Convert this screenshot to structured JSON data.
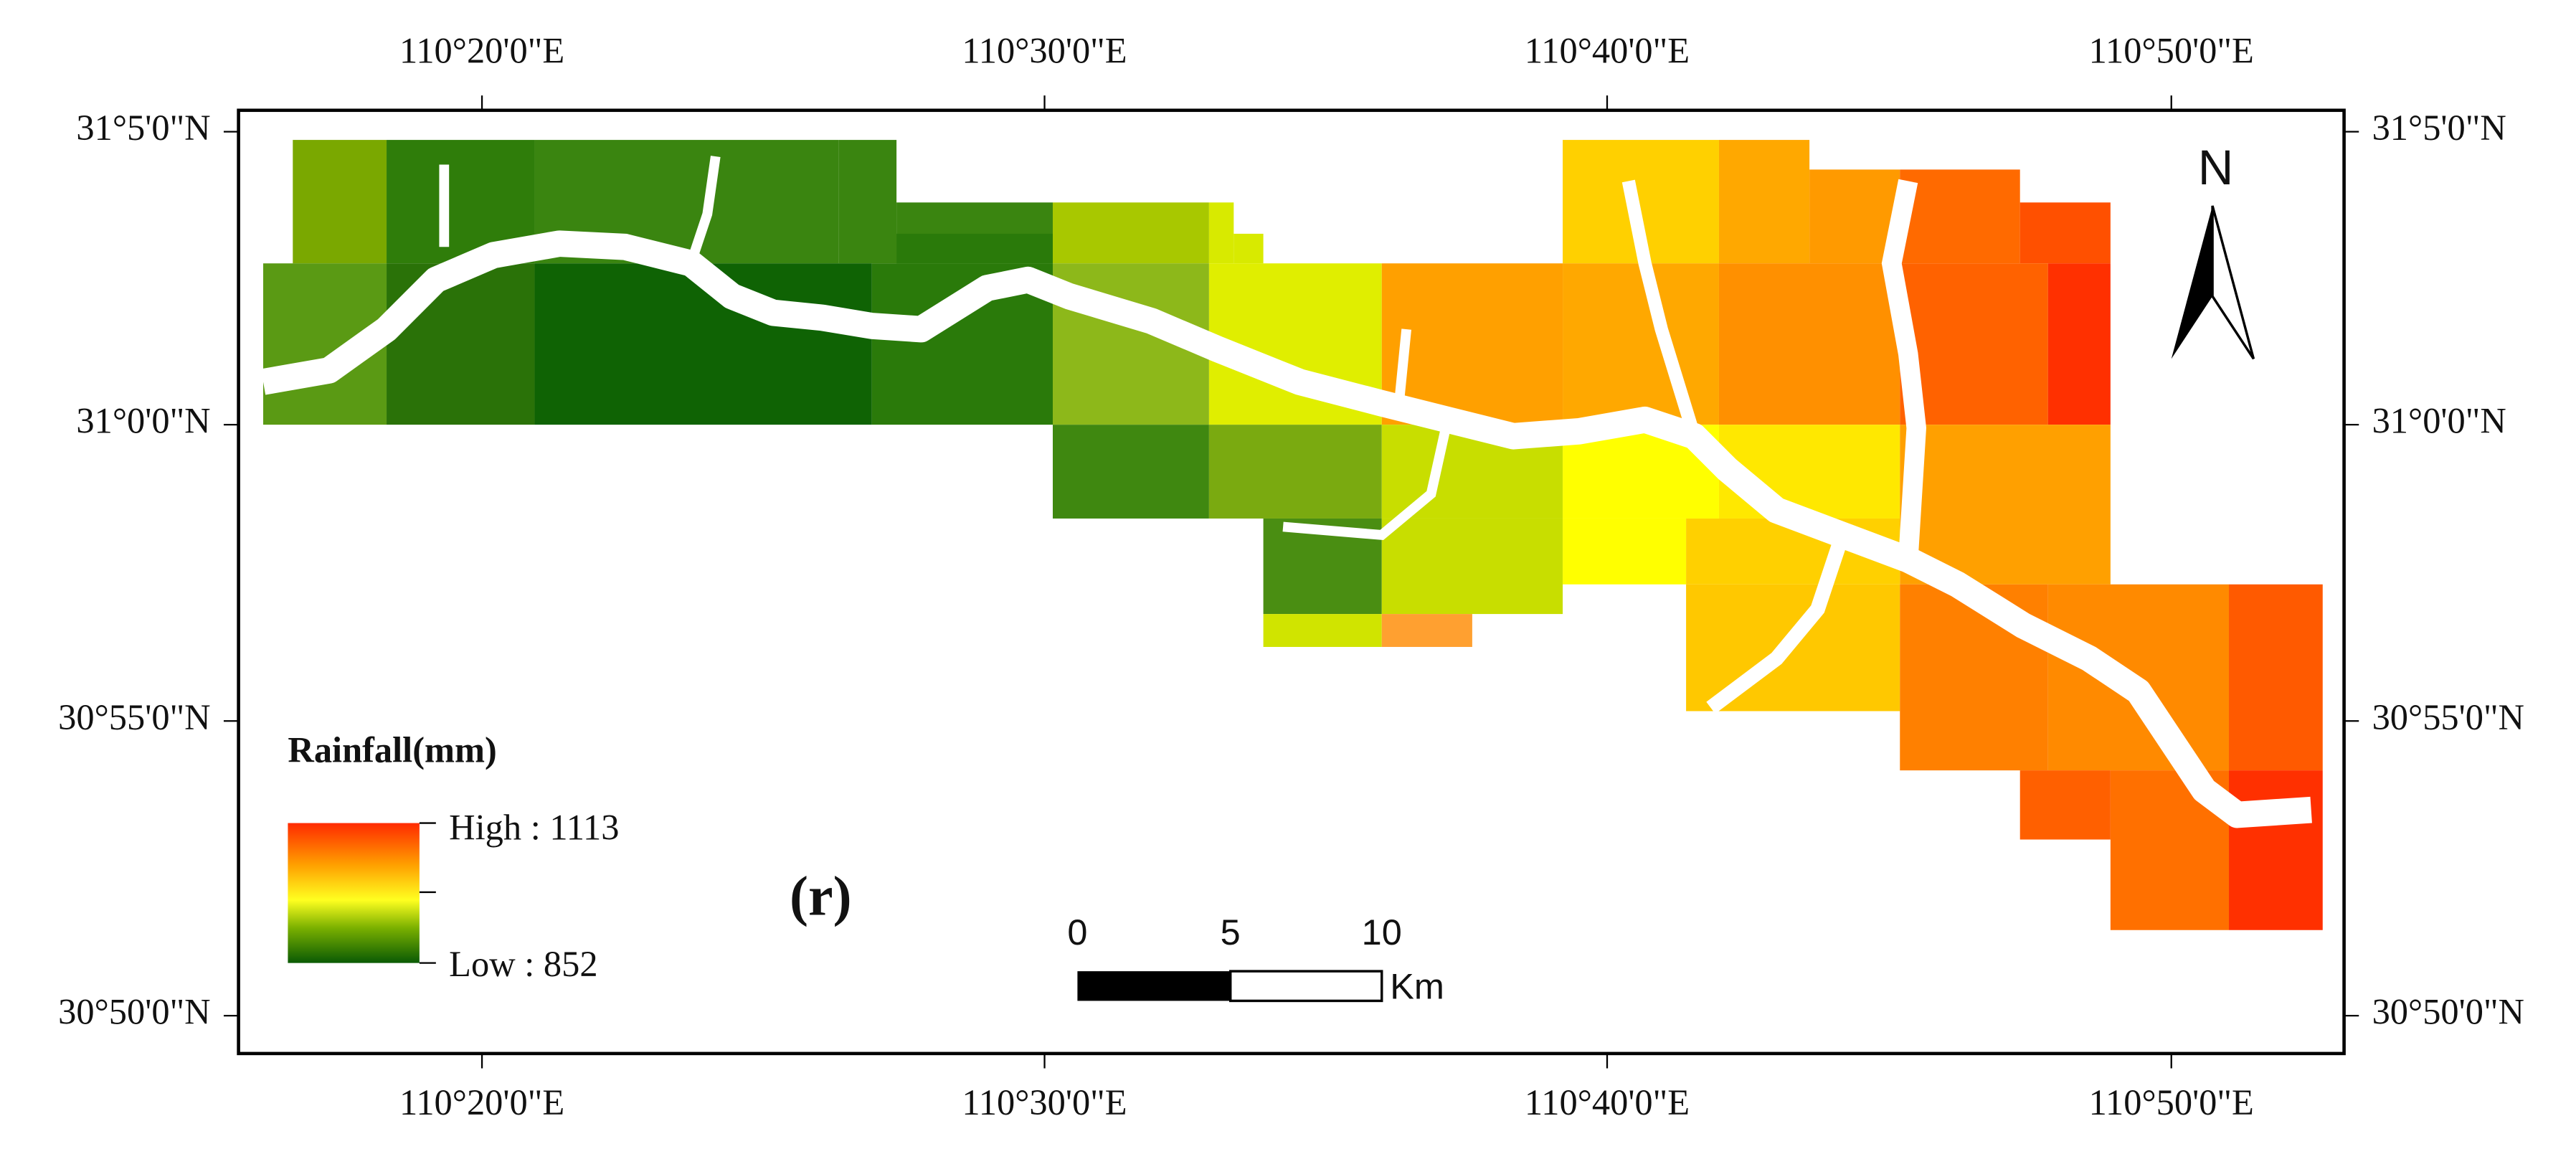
{
  "map": {
    "lon_ticks": [
      "110°20'0\"E",
      "110°30'0\"E",
      "110°40'0\"E",
      "110°50'0\"E"
    ],
    "lat_ticks": [
      "31°5'0\"N",
      "31°0'0\"N",
      "30°55'0\"N",
      "30°50'0\"N"
    ],
    "legend": {
      "title": "Rainfall(mm)",
      "high": "High : 1113",
      "low": "Low : 852"
    },
    "panel_label": "(r)",
    "scale_bar": {
      "labels": [
        "0",
        "5",
        "10"
      ],
      "unit": "Km"
    },
    "north": "N"
  }
}
